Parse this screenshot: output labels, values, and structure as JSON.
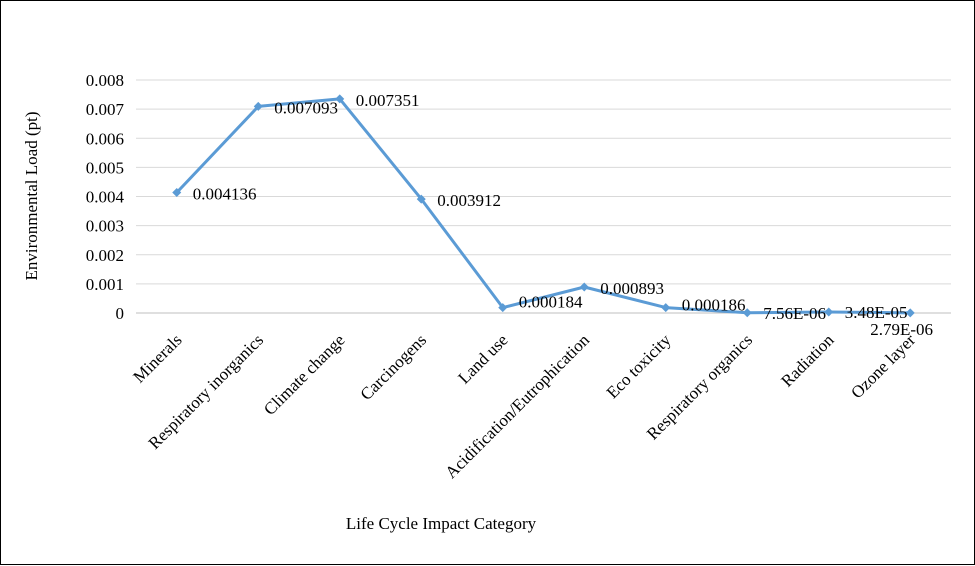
{
  "chart_data": {
    "type": "line",
    "title": "",
    "xlabel": "Life Cycle Impact Category",
    "ylabel": "Environmental Load (pt)",
    "ylim": [
      0,
      0.008
    ],
    "yticks": [
      "0",
      "0.001",
      "0.002",
      "0.003",
      "0.004",
      "0.005",
      "0.006",
      "0.007",
      "0.008"
    ],
    "grid": true,
    "legend": "none",
    "categories": [
      "Minerals",
      "Respiratory inorganics",
      "Climate change",
      "Carcinogens",
      "Land use",
      "Acidification/Eutrophication",
      "Eco toxicity",
      "Respiratory organics",
      "Radiation",
      "Ozone layer"
    ],
    "series": [
      {
        "values": [
          0.004136,
          0.007093,
          0.007351,
          0.003912,
          0.000184,
          0.000893,
          0.000186,
          7.56e-06,
          3.48e-05,
          2.79e-06
        ],
        "data_labels": [
          "0.004136",
          "0.007093",
          "0.007351",
          "0.003912",
          "0.000184",
          "0.000893",
          "0.000186",
          "7.56E-06",
          "3.48E-05",
          "2.79E-06"
        ],
        "color": "#5b9bd5"
      }
    ]
  }
}
